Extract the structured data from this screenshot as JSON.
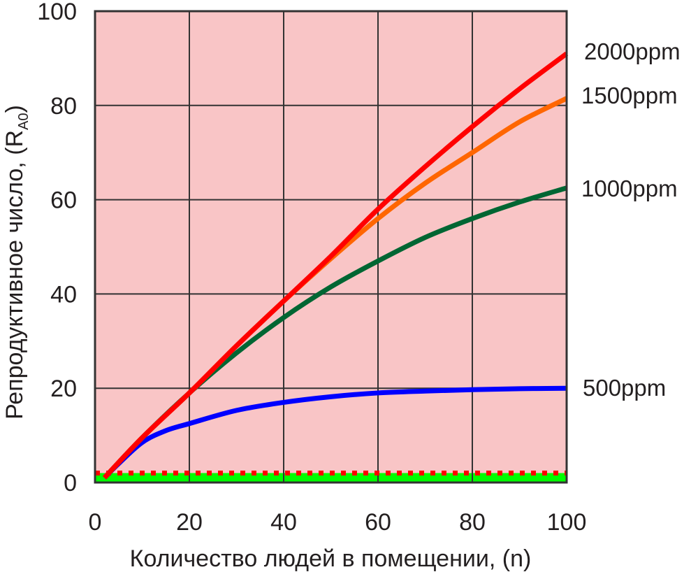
{
  "chart_data": {
    "type": "line",
    "title": "",
    "xlabel": "Количество людей в помещении, (n)",
    "ylabel": "Репродуктивное число,  (R",
    "ylabel_subscript": "A0",
    "ylabel_close": ")",
    "xlim": [
      0,
      100
    ],
    "ylim": [
      0,
      100
    ],
    "x_ticks": [
      0,
      20,
      40,
      60,
      80,
      100
    ],
    "y_ticks": [
      0,
      20,
      40,
      60,
      80,
      100
    ],
    "grid": true,
    "background_color": "#f9c5c6",
    "threshold_band": {
      "from": 0,
      "to": 2,
      "color": "#00ff00"
    },
    "threshold_line": {
      "y": 2,
      "color": "#ff0000",
      "style": "dotted"
    },
    "legend_position": "right-inline",
    "series": [
      {
        "name": "2000ppm",
        "color": "#ff0000",
        "x": [
          2,
          10,
          20,
          30,
          40,
          50,
          60,
          70,
          80,
          90,
          100
        ],
        "values": [
          1,
          9.5,
          19,
          29,
          38.5,
          48,
          58,
          67,
          75.5,
          83.5,
          91
        ]
      },
      {
        "name": "1500ppm",
        "color": "#ff6600",
        "x": [
          2,
          10,
          20,
          30,
          40,
          50,
          60,
          70,
          80,
          90,
          100
        ],
        "values": [
          1,
          9.5,
          19,
          29,
          38.5,
          47.5,
          56,
          63.5,
          70,
          76.5,
          81.5
        ]
      },
      {
        "name": "1000ppm",
        "color": "#006633",
        "x": [
          2,
          10,
          20,
          30,
          40,
          50,
          60,
          70,
          80,
          90,
          100
        ],
        "values": [
          1,
          9.5,
          19,
          27.5,
          35,
          41.5,
          47,
          52,
          56,
          59.5,
          62.5
        ]
      },
      {
        "name": "500ppm",
        "color": "#0000ff",
        "x": [
          2,
          5,
          10,
          15,
          20,
          30,
          40,
          50,
          60,
          70,
          80,
          90,
          100
        ],
        "values": [
          1,
          4,
          8.5,
          11,
          12.5,
          15.3,
          17,
          18.2,
          19,
          19.4,
          19.7,
          19.9,
          20
        ]
      }
    ]
  }
}
